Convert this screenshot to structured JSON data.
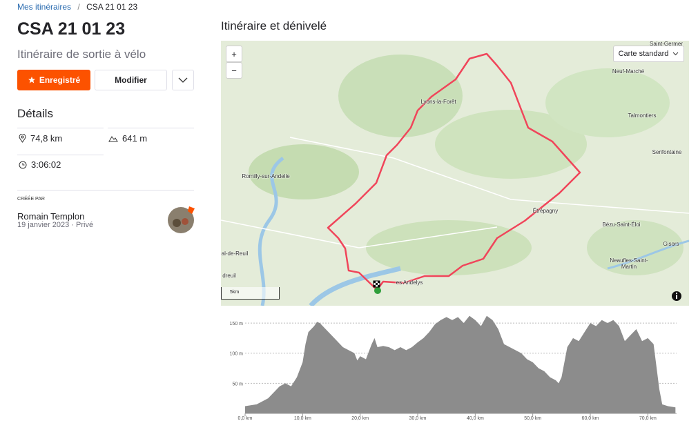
{
  "breadcrumb": {
    "link": "Mes itinéraires",
    "separator": "/",
    "current": "CSA 21 01 23"
  },
  "title": "CSA 21 01 23",
  "subtitle": "Itinéraire de sortie à vélo",
  "buttons": {
    "saved": "Enregistré",
    "edit": "Modifier"
  },
  "details": {
    "heading": "Détails",
    "distance": "74,8 km",
    "elevation": "641 m",
    "time": "3:06:02"
  },
  "creator": {
    "label": "CRÉÉE PAR",
    "name": "Romain Templon",
    "date": "19 janvier 2023 · Privé"
  },
  "map": {
    "heading": "Itinéraire et dénivelé",
    "zoom_in": "+",
    "zoom_out": "−",
    "layer": "Carte standard",
    "scale": "5km",
    "places": [
      "Saint-Germer",
      "Neuf-Marché",
      "Lyons-la-Forêt",
      "Talmontiers",
      "Serifontaine",
      "Romilly-sur-Andelle",
      "Étrépagny",
      "Bézu-Saint-Éloi",
      "Gisors",
      "Neaufles-Saint-Martin",
      "al-de-Reuil",
      "dreuil",
      "es Andelys"
    ]
  },
  "chart_data": {
    "type": "area",
    "color": "#8c8c8c",
    "x": [
      0,
      2,
      4,
      6,
      7,
      8,
      9,
      10,
      10.5,
      11,
      12,
      12.5,
      13,
      14,
      15,
      16,
      17,
      18,
      19,
      19.5,
      20,
      21,
      22,
      22.5,
      23,
      24,
      25,
      26,
      27,
      28,
      29,
      30,
      31,
      32,
      33,
      34,
      35,
      36,
      37,
      38,
      39,
      40,
      41,
      42,
      43,
      44,
      45,
      46,
      47,
      48,
      49,
      50,
      51,
      52,
      53,
      54,
      54.5,
      55,
      56,
      57,
      58,
      59,
      60,
      61,
      62,
      63,
      64,
      65,
      66,
      67,
      68,
      69,
      70,
      71,
      72,
      72.5,
      73.5,
      74.8
    ],
    "values": [
      12,
      15,
      25,
      45,
      50,
      45,
      60,
      85,
      115,
      135,
      145,
      152,
      150,
      140,
      130,
      120,
      110,
      105,
      100,
      88,
      95,
      90,
      115,
      125,
      110,
      112,
      110,
      105,
      110,
      105,
      110,
      118,
      125,
      135,
      148,
      155,
      160,
      155,
      160,
      150,
      162,
      155,
      145,
      162,
      155,
      140,
      115,
      110,
      105,
      100,
      90,
      85,
      75,
      70,
      60,
      55,
      50,
      60,
      110,
      125,
      120,
      135,
      150,
      145,
      155,
      150,
      155,
      145,
      120,
      130,
      140,
      120,
      125,
      115,
      40,
      15,
      12,
      10
    ],
    "xlim": [
      0,
      75
    ],
    "ylim": [
      0,
      165
    ],
    "xticks": [
      {
        "value": 0,
        "label": "0,0 km"
      },
      {
        "value": 10,
        "label": "10,0 km"
      },
      {
        "value": 20,
        "label": "20,0 km"
      },
      {
        "value": 30,
        "label": "30,0 km"
      },
      {
        "value": 40,
        "label": "40,0 km"
      },
      {
        "value": 50,
        "label": "50,0 km"
      },
      {
        "value": 60,
        "label": "60,0 km"
      },
      {
        "value": 70,
        "label": "70,0 km"
      }
    ],
    "yticks": [
      {
        "value": 50,
        "label": "50 m"
      },
      {
        "value": 100,
        "label": "100 m"
      },
      {
        "value": 150,
        "label": "150 m"
      }
    ],
    "grid": true
  }
}
